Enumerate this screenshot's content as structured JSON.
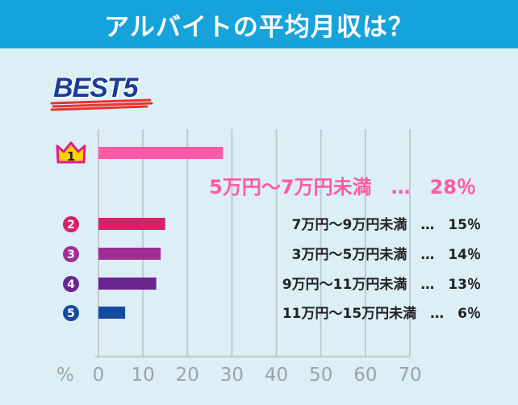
{
  "header": {
    "title": "アルバイトの平均月収は？"
  },
  "badge": {
    "text": "BEST5"
  },
  "chart_data": {
    "type": "bar",
    "orientation": "horizontal",
    "axis_unit": "%",
    "xlim": [
      0,
      70
    ],
    "ticks": [
      "0",
      "10",
      "20",
      "30",
      "40",
      "50",
      "60",
      "70"
    ],
    "grid": true,
    "items": [
      {
        "rank": "1",
        "label": "5万円～7万円未満　…　28％",
        "value": 28,
        "color": "#ff5aa5"
      },
      {
        "rank": "2",
        "label": "7万円～9万円未満　…　15％",
        "value": 15,
        "color": "#d8206a"
      },
      {
        "rank": "3",
        "label": "3万円～5万円未満　…　14％",
        "value": 14,
        "color": "#a12d96"
      },
      {
        "rank": "4",
        "label": "9万円～11万円未満　…　13％",
        "value": 13,
        "color": "#6b2590"
      },
      {
        "rank": "5",
        "label": "11万円～15万円未満　…　6％",
        "value": 6,
        "color": "#134b9e"
      }
    ]
  },
  "colors": {
    "header_bg": "#16a3dc",
    "crown": "#ffd200",
    "crown_outline": "#e2199a"
  }
}
